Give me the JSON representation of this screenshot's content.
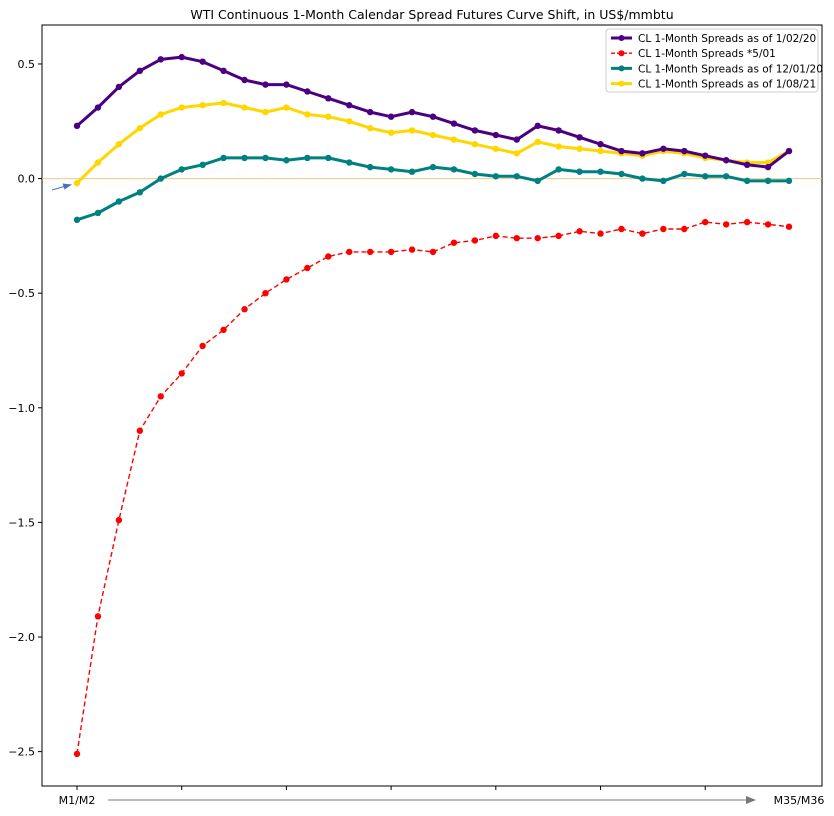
{
  "chart_data": {
    "type": "line",
    "title": "WTI Continuous 1-Month Calendar Spread Futures Curve Shift, in US$/mmbtu",
    "xlabel": "",
    "ylabel": "",
    "x_start_label": "M1/M2",
    "x_end_label": "M35/M36",
    "x": [
      1,
      2,
      3,
      4,
      5,
      6,
      7,
      8,
      9,
      10,
      11,
      12,
      13,
      14,
      15,
      16,
      17,
      18,
      19,
      20,
      21,
      22,
      23,
      24,
      25,
      26,
      27,
      28,
      29,
      30,
      31,
      32,
      33,
      34,
      35
    ],
    "ylim": [
      -2.65,
      0.67
    ],
    "yticks": [
      -2.5,
      -2.0,
      -1.5,
      -1.0,
      -0.5,
      0.0,
      0.5
    ],
    "ytick_labels": [
      "−2.5",
      "−2.0",
      "−1.5",
      "−1.0",
      "−0.5",
      "0.0",
      "0.5"
    ],
    "grid": false,
    "legend_position": "top-right",
    "reference_line": {
      "y": 0.0,
      "color": "#e8c98a"
    },
    "series": [
      {
        "name": "CL 1-Month Spreads as of 1/02/20",
        "color": "#4b0082",
        "style": "solid",
        "width": "thick",
        "values": [
          0.23,
          0.31,
          0.4,
          0.47,
          0.52,
          0.53,
          0.51,
          0.47,
          0.43,
          0.41,
          0.41,
          0.38,
          0.35,
          0.32,
          0.29,
          0.27,
          0.29,
          0.27,
          0.24,
          0.21,
          0.19,
          0.17,
          0.23,
          0.21,
          0.18,
          0.15,
          0.12,
          0.11,
          0.13,
          0.12,
          0.1,
          0.08,
          0.06,
          0.05,
          0.12
        ]
      },
      {
        "name": "CL 1-Month Spreads *5/01",
        "color": "#ff0000",
        "style": "dashed",
        "width": "thin",
        "values": [
          -2.51,
          -1.91,
          -1.49,
          -1.1,
          -0.95,
          -0.85,
          -0.73,
          -0.66,
          -0.57,
          -0.5,
          -0.44,
          -0.39,
          -0.34,
          -0.32,
          -0.32,
          -0.32,
          -0.31,
          -0.32,
          -0.28,
          -0.27,
          -0.25,
          -0.26,
          -0.26,
          -0.25,
          -0.23,
          -0.24,
          -0.22,
          -0.24,
          -0.22,
          -0.22,
          -0.19,
          -0.2,
          -0.19,
          -0.2,
          -0.21
        ]
      },
      {
        "name": "CL 1-Month Spreads as of 12/01/20",
        "color": "#008080",
        "style": "solid",
        "width": "thick",
        "values": [
          -0.18,
          -0.15,
          -0.1,
          -0.06,
          0.0,
          0.04,
          0.06,
          0.09,
          0.09,
          0.09,
          0.08,
          0.09,
          0.09,
          0.07,
          0.05,
          0.04,
          0.03,
          0.05,
          0.04,
          0.02,
          0.01,
          0.01,
          -0.01,
          0.04,
          0.03,
          0.03,
          0.02,
          0.0,
          -0.01,
          0.02,
          0.01,
          0.01,
          -0.01,
          -0.01,
          -0.01
        ]
      },
      {
        "name": "CL 1-Month Spreads as of 1/08/21",
        "color": "#ffd700",
        "style": "solid",
        "width": "thick",
        "values": [
          -0.02,
          0.07,
          0.15,
          0.22,
          0.28,
          0.31,
          0.32,
          0.33,
          0.31,
          0.29,
          0.31,
          0.28,
          0.27,
          0.25,
          0.22,
          0.2,
          0.21,
          0.19,
          0.17,
          0.15,
          0.13,
          0.11,
          0.16,
          0.14,
          0.13,
          0.12,
          0.11,
          0.1,
          0.12,
          0.11,
          0.09,
          0.08,
          0.07,
          0.07,
          0.12
        ]
      }
    ]
  }
}
